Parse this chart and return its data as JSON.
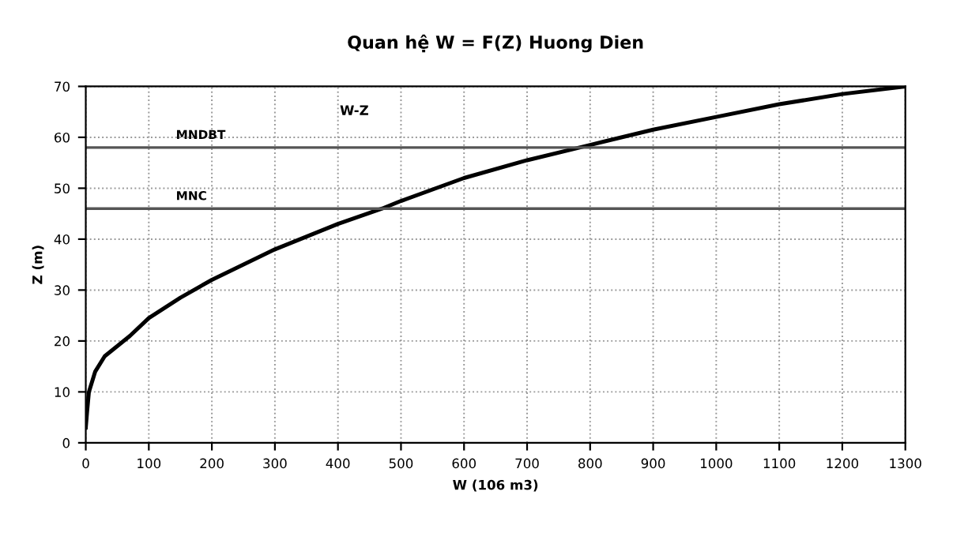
{
  "chart_data": {
    "type": "line",
    "title": "Quan hệ W = F(Z) Huong Dien",
    "xlabel": "W (106 m3)",
    "ylabel": "Z (m)",
    "series": [
      {
        "name": "W-Z",
        "color": "#000000",
        "x": [
          0,
          2,
          5,
          15,
          30,
          70,
          100,
          150,
          200,
          300,
          400,
          470,
          500,
          600,
          700,
          800,
          900,
          1000,
          1100,
          1200,
          1300
        ],
        "values": [
          3,
          6,
          10,
          14,
          17,
          21,
          24.5,
          28.5,
          32,
          38,
          43,
          46,
          47.5,
          52,
          55.5,
          58.5,
          61.5,
          64,
          66.5,
          68.5,
          70
        ]
      }
    ],
    "ref_lines": [
      {
        "axis": "y",
        "value": 58,
        "label": "MNDBT",
        "color": "#555555"
      },
      {
        "axis": "y",
        "value": 46,
        "label": "MNC",
        "color": "#555555"
      }
    ],
    "xlim": [
      0,
      1300
    ],
    "ylim": [
      0,
      70
    ],
    "xticks": [
      0,
      100,
      200,
      300,
      400,
      500,
      600,
      700,
      800,
      900,
      1000,
      1100,
      1200,
      1300
    ],
    "yticks": [
      0,
      10,
      20,
      30,
      40,
      50,
      60,
      70
    ],
    "grid": true,
    "legend": false,
    "marker": "none",
    "line_style": "solid"
  }
}
